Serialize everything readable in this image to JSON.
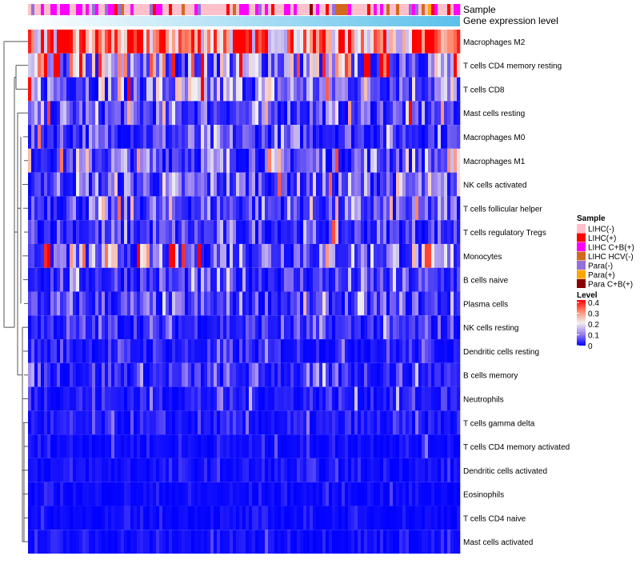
{
  "chart_data": {
    "type": "heatmap",
    "annotation_tracks": [
      "Sample",
      "Gene expression level"
    ],
    "rows": [
      "Macrophages M2",
      "T cells CD4 memory resting",
      "T cells CD8",
      "Mast cells resting",
      "Macrophages M0",
      "Macrophages M1",
      "NK cells activated",
      "T cells follicular helper",
      "T cells regulatory  Tregs",
      "Monocytes",
      "B cells naive",
      "Plasma cells",
      "NK cells resting",
      "Dendritic cells resting",
      "B cells memory",
      "Neutrophils",
      "T cells gamma delta",
      "T cells CD4 memory activated",
      "Dendritic cells activated",
      "Eosinophils",
      "T cells CD4 naive",
      "Mast cells activated"
    ],
    "row_mean_level": [
      0.3,
      0.15,
      0.12,
      0.07,
      0.06,
      0.09,
      0.08,
      0.07,
      0.05,
      0.11,
      0.05,
      0.05,
      0.04,
      0.03,
      0.04,
      0.03,
      0.02,
      0.015,
      0.015,
      0.01,
      0.01,
      0.015
    ],
    "n_samples": 135,
    "legend_sample": {
      "title": "Sample",
      "entries": [
        {
          "label": "LIHC(-)",
          "color": "#ffc0cb"
        },
        {
          "label": "LIHC(+)",
          "color": "#ff0000"
        },
        {
          "label": "LIHC C+B(+)",
          "color": "#ff00ff"
        },
        {
          "label": "LIHC HCV(-)",
          "color": "#d2691e"
        },
        {
          "label": "Para(-)",
          "color": "#9370db"
        },
        {
          "label": "Para(+)",
          "color": "#ffa500"
        },
        {
          "label": "Para C+B(+)",
          "color": "#8b0000"
        }
      ]
    },
    "legend_level": {
      "title": "Level",
      "ticks": [
        "0.4",
        "0.3",
        "0.2",
        "0.1",
        "0"
      ],
      "range": [
        0,
        0.4
      ],
      "colors": [
        "#0000ff",
        "#9a80f0",
        "#f0f0f0",
        "#ff8a70",
        "#ff0000"
      ]
    },
    "expression_gradient": [
      "#ffffff",
      "#5bc0eb"
    ]
  }
}
